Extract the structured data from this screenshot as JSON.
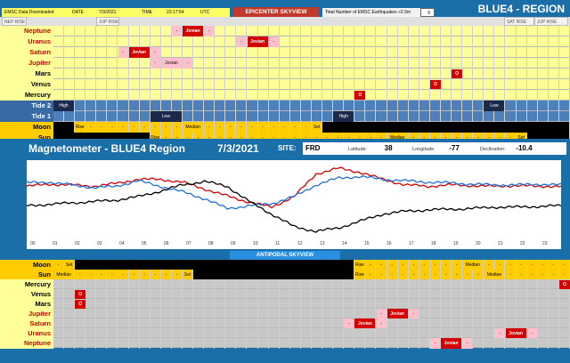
{
  "header": {
    "emsc_label": "EMSC Data Downloaded",
    "date_label": "DATE",
    "date_value": "7/3/2021",
    "time_label": "TIME",
    "time_value": "23:17:54",
    "tz": "UTC",
    "skyview_title": "EPICENTER SKYVIEW",
    "emsc_count_label": "Total Number of EMSC Earthquakes >2.5m",
    "emsc_count": "9",
    "region_title": "BLUE4 - REGION",
    "nep_rise": "NEP RISE",
    "jup_rise": "JUP RISE",
    "sat_rise": "SAT RISE",
    "jup_rise2": "JUP RISE"
  },
  "epicenter_rows": [
    {
      "label": "Neptune",
      "color": "red",
      "cells": [
        {
          "pos": 11,
          "w": 1,
          "t": "-",
          "k": "pink"
        },
        {
          "pos": 12,
          "w": 2,
          "t": "Jovian",
          "k": "red"
        },
        {
          "pos": 14,
          "w": 1,
          "t": "-",
          "k": "pink"
        }
      ]
    },
    {
      "label": "Uranus",
      "color": "red",
      "cells": [
        {
          "pos": 17,
          "w": 1,
          "t": "-",
          "k": "pink"
        },
        {
          "pos": 18,
          "w": 2,
          "t": "Jovian",
          "k": "red"
        },
        {
          "pos": 20,
          "w": 1,
          "t": "-",
          "k": "pink"
        }
      ]
    },
    {
      "label": "Saturn",
      "color": "red",
      "cells": [
        {
          "pos": 6,
          "w": 1,
          "t": "-",
          "k": "pink"
        },
        {
          "pos": 7,
          "w": 2,
          "t": "Jovian",
          "k": "red"
        },
        {
          "pos": 9,
          "w": 1,
          "t": "-",
          "k": "pink"
        }
      ]
    },
    {
      "label": "Jupiter",
      "color": "red",
      "cells": [
        {
          "pos": 9,
          "w": 1,
          "t": "-",
          "k": "pink"
        },
        {
          "pos": 10,
          "w": 2,
          "t": "Jovian",
          "k": "pink"
        },
        {
          "pos": 12,
          "w": 1,
          "t": "-",
          "k": "pink"
        }
      ]
    },
    {
      "label": "Mars",
      "color": "dark",
      "cells": [
        {
          "pos": 37,
          "w": 1,
          "t": "O",
          "k": "redbox"
        }
      ]
    },
    {
      "label": "Venus",
      "color": "dark",
      "cells": [
        {
          "pos": 35,
          "w": 1,
          "t": "O",
          "k": "redbox"
        }
      ]
    },
    {
      "label": "Mercury",
      "color": "dark",
      "cells": [
        {
          "pos": 28,
          "w": 1,
          "t": "O",
          "k": "redbox"
        }
      ]
    }
  ],
  "tide_rows": [
    {
      "label": "Tide 2",
      "cells": [
        {
          "pos": 0,
          "w": 2,
          "t": "High",
          "k": "navy"
        },
        {
          "pos": 40,
          "w": 2,
          "t": "Low",
          "k": "navy"
        }
      ]
    },
    {
      "label": "Tide 1",
      "cells": [
        {
          "pos": 9,
          "w": 3,
          "t": "Low",
          "k": "navy"
        },
        {
          "pos": 26,
          "w": 2,
          "t": "High",
          "k": "navy"
        }
      ]
    }
  ],
  "epi_moon": {
    "label": "Moon",
    "cells": [
      {
        "pos": 0,
        "w": 2,
        "t": "",
        "k": "black"
      },
      {
        "pos": 2,
        "w": 1,
        "t": "Rise",
        "k": "gold"
      },
      {
        "pos": 3,
        "w": 1,
        "t": "-",
        "k": "gold"
      },
      {
        "pos": 4,
        "w": 1,
        "t": "-",
        "k": "gold"
      },
      {
        "pos": 5,
        "w": 1,
        "t": "-",
        "k": "gold"
      },
      {
        "pos": 6,
        "w": 1,
        "t": "-",
        "k": "gold"
      },
      {
        "pos": 7,
        "w": 1,
        "t": "-",
        "k": "gold"
      },
      {
        "pos": 8,
        "w": 1,
        "t": "-",
        "k": "gold"
      },
      {
        "pos": 9,
        "w": 1,
        "t": "-",
        "k": "gold"
      },
      {
        "pos": 10,
        "w": 1,
        "t": "-",
        "k": "gold"
      },
      {
        "pos": 11,
        "w": 1,
        "t": "-",
        "k": "gold"
      },
      {
        "pos": 12,
        "w": 2,
        "t": "Median",
        "k": "gold"
      },
      {
        "pos": 14,
        "w": 1,
        "t": "-",
        "k": "gold"
      },
      {
        "pos": 15,
        "w": 1,
        "t": "-",
        "k": "gold"
      },
      {
        "pos": 16,
        "w": 1,
        "t": "-",
        "k": "gold"
      },
      {
        "pos": 17,
        "w": 1,
        "t": "-",
        "k": "gold"
      },
      {
        "pos": 18,
        "w": 1,
        "t": "-",
        "k": "gold"
      },
      {
        "pos": 19,
        "w": 1,
        "t": "-",
        "k": "gold"
      },
      {
        "pos": 20,
        "w": 1,
        "t": "-",
        "k": "gold"
      },
      {
        "pos": 21,
        "w": 1,
        "t": "-",
        "k": "gold"
      },
      {
        "pos": 22,
        "w": 1,
        "t": "-",
        "k": "gold"
      },
      {
        "pos": 23,
        "w": 1,
        "t": "-",
        "k": "gold"
      },
      {
        "pos": 24,
        "w": 1,
        "t": "Set",
        "k": "gold"
      },
      {
        "pos": 25,
        "w": 23,
        "t": "",
        "k": "black"
      }
    ]
  },
  "epi_sun": {
    "label": "Sun",
    "cells": [
      {
        "pos": 0,
        "w": 9,
        "t": "",
        "k": "black"
      },
      {
        "pos": 9,
        "w": 1,
        "t": "Rise",
        "k": "gold"
      },
      {
        "pos": 10,
        "w": 1,
        "t": "-",
        "k": "gold"
      },
      {
        "pos": 11,
        "w": 1,
        "t": "-",
        "k": "gold"
      },
      {
        "pos": 12,
        "w": 1,
        "t": "-",
        "k": "gold"
      },
      {
        "pos": 13,
        "w": 1,
        "t": "-",
        "k": "gold"
      },
      {
        "pos": 14,
        "w": 1,
        "t": "-",
        "k": "gold"
      },
      {
        "pos": 15,
        "w": 1,
        "t": "-",
        "k": "gold"
      },
      {
        "pos": 16,
        "w": 1,
        "t": "-",
        "k": "gold"
      },
      {
        "pos": 17,
        "w": 1,
        "t": "-",
        "k": "gold"
      },
      {
        "pos": 18,
        "w": 1,
        "t": "-",
        "k": "gold"
      },
      {
        "pos": 19,
        "w": 1,
        "t": "-",
        "k": "gold"
      },
      {
        "pos": 20,
        "w": 1,
        "t": "-",
        "k": "gold"
      },
      {
        "pos": 21,
        "w": 1,
        "t": "-",
        "k": "gold"
      },
      {
        "pos": 22,
        "w": 1,
        "t": "-",
        "k": "gold"
      },
      {
        "pos": 23,
        "w": 1,
        "t": "-",
        "k": "gold"
      },
      {
        "pos": 24,
        "w": 1,
        "t": "-",
        "k": "gold"
      },
      {
        "pos": 25,
        "w": 1,
        "t": "-",
        "k": "gold"
      },
      {
        "pos": 26,
        "w": 1,
        "t": "-",
        "k": "gold"
      },
      {
        "pos": 27,
        "w": 1,
        "t": "-",
        "k": "gold"
      },
      {
        "pos": 28,
        "w": 1,
        "t": "-",
        "k": "gold"
      },
      {
        "pos": 29,
        "w": 1,
        "t": "-",
        "k": "gold"
      },
      {
        "pos": 30,
        "w": 1,
        "t": "-",
        "k": "gold"
      },
      {
        "pos": 31,
        "w": 2,
        "t": "Median",
        "k": "gold"
      },
      {
        "pos": 33,
        "w": 1,
        "t": "-",
        "k": "gold"
      },
      {
        "pos": 34,
        "w": 1,
        "t": "-",
        "k": "gold"
      },
      {
        "pos": 35,
        "w": 1,
        "t": "-",
        "k": "gold"
      },
      {
        "pos": 36,
        "w": 1,
        "t": "-",
        "k": "gold"
      },
      {
        "pos": 37,
        "w": 1,
        "t": "-",
        "k": "gold"
      },
      {
        "pos": 38,
        "w": 1,
        "t": "-",
        "k": "gold"
      },
      {
        "pos": 39,
        "w": 1,
        "t": "-",
        "k": "gold"
      },
      {
        "pos": 40,
        "w": 1,
        "t": "-",
        "k": "gold"
      },
      {
        "pos": 41,
        "w": 1,
        "t": "-",
        "k": "gold"
      },
      {
        "pos": 42,
        "w": 1,
        "t": "-",
        "k": "gold"
      },
      {
        "pos": 43,
        "w": 1,
        "t": "Set",
        "k": "gold"
      },
      {
        "pos": 44,
        "w": 4,
        "t": "",
        "k": "black"
      }
    ]
  },
  "magnetometer": {
    "title": "Magnetometer - BLUE4 Region",
    "date": "7/3/2021",
    "site_label": "SITE:",
    "site_value": "FRD",
    "lat_label": "Latitude:",
    "lat_value": "38",
    "lon_label": "Longitude:",
    "lon_value": "-77",
    "dec_label": "Declination:",
    "dec_value": "-10.4"
  },
  "chart_data": {
    "type": "line",
    "x": [
      0,
      1,
      2,
      3,
      4,
      5,
      6,
      7,
      8,
      9,
      10,
      11,
      12,
      13,
      14,
      15,
      16,
      17,
      18,
      19,
      20,
      21,
      22,
      23,
      24
    ],
    "xticks": [
      "00",
      "01",
      "02",
      "03",
      "04",
      "05",
      "06",
      "07",
      "08",
      "09",
      "10",
      "11",
      "12",
      "13",
      "14",
      "15",
      "16",
      "17",
      "18",
      "19",
      "20",
      "21",
      "22",
      "23"
    ],
    "series": [
      {
        "color": "#d40000",
        "values": [
          0.7,
          0.73,
          0.72,
          0.7,
          0.74,
          0.8,
          0.8,
          0.76,
          0.66,
          0.56,
          0.47,
          0.4,
          0.55,
          0.88,
          0.96,
          0.9,
          0.8,
          0.72,
          0.7,
          0.72,
          0.71,
          0.7,
          0.71,
          0.7,
          0.7
        ]
      },
      {
        "color": "#1f6fd6",
        "values": [
          0.75,
          0.76,
          0.72,
          0.68,
          0.7,
          0.78,
          0.7,
          0.62,
          0.52,
          0.38,
          0.42,
          0.45,
          0.55,
          0.72,
          0.82,
          0.84,
          0.8,
          0.78,
          0.76,
          0.75,
          0.73,
          0.72,
          0.72,
          0.73,
          0.72
        ]
      },
      {
        "color": "#000000",
        "values": [
          0.42,
          0.44,
          0.46,
          0.48,
          0.5,
          0.55,
          0.63,
          0.72,
          0.77,
          0.7,
          0.48,
          0.3,
          0.12,
          0.05,
          0.1,
          0.2,
          0.3,
          0.34,
          0.36,
          0.37,
          0.38,
          0.4,
          0.4,
          0.41,
          0.42
        ]
      }
    ],
    "ylim": [
      0,
      1
    ]
  },
  "antipodal": {
    "title": "ANTIPODAL SKYVIEW",
    "moon": {
      "label": "Moon",
      "cells": [
        {
          "pos": 0,
          "w": 1,
          "t": "-",
          "k": "gold"
        },
        {
          "pos": 1,
          "w": 1,
          "t": "Set",
          "k": "gold"
        },
        {
          "pos": 2,
          "w": 26,
          "t": "",
          "k": "black"
        },
        {
          "pos": 28,
          "w": 1,
          "t": "Rise",
          "k": "gold"
        },
        {
          "pos": 29,
          "w": 1,
          "t": "-",
          "k": "gold"
        },
        {
          "pos": 30,
          "w": 1,
          "t": "-",
          "k": "gold"
        },
        {
          "pos": 31,
          "w": 1,
          "t": "-",
          "k": "gold"
        },
        {
          "pos": 32,
          "w": 1,
          "t": "-",
          "k": "gold"
        },
        {
          "pos": 33,
          "w": 1,
          "t": "-",
          "k": "gold"
        },
        {
          "pos": 34,
          "w": 1,
          "t": "-",
          "k": "gold"
        },
        {
          "pos": 35,
          "w": 1,
          "t": "-",
          "k": "gold"
        },
        {
          "pos": 36,
          "w": 1,
          "t": "-",
          "k": "gold"
        },
        {
          "pos": 37,
          "w": 1,
          "t": "-",
          "k": "gold"
        },
        {
          "pos": 38,
          "w": 2,
          "t": "Median",
          "k": "gold"
        },
        {
          "pos": 40,
          "w": 1,
          "t": "-",
          "k": "gold"
        },
        {
          "pos": 41,
          "w": 1,
          "t": "-",
          "k": "gold"
        },
        {
          "pos": 42,
          "w": 1,
          "t": "-",
          "k": "gold"
        },
        {
          "pos": 43,
          "w": 1,
          "t": "-",
          "k": "gold"
        },
        {
          "pos": 44,
          "w": 1,
          "t": "-",
          "k": "gold"
        },
        {
          "pos": 45,
          "w": 1,
          "t": "-",
          "k": "gold"
        },
        {
          "pos": 46,
          "w": 1,
          "t": "-",
          "k": "gold"
        },
        {
          "pos": 47,
          "w": 1,
          "t": "-",
          "k": "gold"
        }
      ]
    },
    "sun": {
      "label": "Sun",
      "cells": [
        {
          "pos": 0,
          "w": 2,
          "t": "Median",
          "k": "gold"
        },
        {
          "pos": 2,
          "w": 1,
          "t": "-",
          "k": "gold"
        },
        {
          "pos": 3,
          "w": 1,
          "t": "-",
          "k": "gold"
        },
        {
          "pos": 4,
          "w": 1,
          "t": "-",
          "k": "gold"
        },
        {
          "pos": 5,
          "w": 1,
          "t": "-",
          "k": "gold"
        },
        {
          "pos": 6,
          "w": 1,
          "t": "-",
          "k": "gold"
        },
        {
          "pos": 7,
          "w": 1,
          "t": "-",
          "k": "gold"
        },
        {
          "pos": 8,
          "w": 1,
          "t": "-",
          "k": "gold"
        },
        {
          "pos": 9,
          "w": 1,
          "t": "-",
          "k": "gold"
        },
        {
          "pos": 10,
          "w": 1,
          "t": "-",
          "k": "gold"
        },
        {
          "pos": 11,
          "w": 1,
          "t": "-",
          "k": "gold"
        },
        {
          "pos": 12,
          "w": 1,
          "t": "Set",
          "k": "gold"
        },
        {
          "pos": 13,
          "w": 15,
          "t": "",
          "k": "black"
        },
        {
          "pos": 28,
          "w": 1,
          "t": "Rise",
          "k": "gold"
        },
        {
          "pos": 29,
          "w": 1,
          "t": "-",
          "k": "gold"
        },
        {
          "pos": 30,
          "w": 1,
          "t": "-",
          "k": "gold"
        },
        {
          "pos": 31,
          "w": 1,
          "t": "-",
          "k": "gold"
        },
        {
          "pos": 32,
          "w": 1,
          "t": "-",
          "k": "gold"
        },
        {
          "pos": 33,
          "w": 1,
          "t": "-",
          "k": "gold"
        },
        {
          "pos": 34,
          "w": 1,
          "t": "-",
          "k": "gold"
        },
        {
          "pos": 35,
          "w": 1,
          "t": "-",
          "k": "gold"
        },
        {
          "pos": 36,
          "w": 1,
          "t": "-",
          "k": "gold"
        },
        {
          "pos": 37,
          "w": 1,
          "t": "-",
          "k": "gold"
        },
        {
          "pos": 38,
          "w": 1,
          "t": "-",
          "k": "gold"
        },
        {
          "pos": 39,
          "w": 1,
          "t": "-",
          "k": "gold"
        },
        {
          "pos": 40,
          "w": 2,
          "t": "Median",
          "k": "gold"
        },
        {
          "pos": 42,
          "w": 1,
          "t": "-",
          "k": "gold"
        },
        {
          "pos": 43,
          "w": 1,
          "t": "-",
          "k": "gold"
        },
        {
          "pos": 44,
          "w": 1,
          "t": "-",
          "k": "gold"
        },
        {
          "pos": 45,
          "w": 1,
          "t": "-",
          "k": "gold"
        },
        {
          "pos": 46,
          "w": 1,
          "t": "-",
          "k": "gold"
        },
        {
          "pos": 47,
          "w": 1,
          "t": "-",
          "k": "gold"
        }
      ]
    },
    "rows": [
      {
        "label": "Mercury",
        "color": "dark",
        "cells": [
          {
            "pos": 47,
            "w": 1,
            "t": "O",
            "k": "redbox"
          }
        ]
      },
      {
        "label": "Venus",
        "color": "dark",
        "cells": [
          {
            "pos": 2,
            "w": 1,
            "t": "O",
            "k": "redbox"
          }
        ]
      },
      {
        "label": "Mars",
        "color": "dark",
        "cells": [
          {
            "pos": 2,
            "w": 1,
            "t": "O",
            "k": "redbox"
          }
        ]
      },
      {
        "label": "Jupiter",
        "color": "red",
        "cells": [
          {
            "pos": 30,
            "w": 1,
            "t": "-",
            "k": "pink"
          },
          {
            "pos": 31,
            "w": 2,
            "t": "Jovian",
            "k": "red"
          },
          {
            "pos": 33,
            "w": 1,
            "t": "-",
            "k": "pink"
          }
        ]
      },
      {
        "label": "Saturn",
        "color": "red",
        "cells": [
          {
            "pos": 27,
            "w": 1,
            "t": "-",
            "k": "pink"
          },
          {
            "pos": 28,
            "w": 2,
            "t": "Jovian",
            "k": "red"
          },
          {
            "pos": 30,
            "w": 1,
            "t": "-",
            "k": "pink"
          }
        ]
      },
      {
        "label": "Uranus",
        "color": "red",
        "cells": [
          {
            "pos": 41,
            "w": 1,
            "t": "-",
            "k": "pink"
          },
          {
            "pos": 42,
            "w": 2,
            "t": "Jovian",
            "k": "red"
          },
          {
            "pos": 44,
            "w": 1,
            "t": "-",
            "k": "pink"
          }
        ]
      },
      {
        "label": "Neptune",
        "color": "red",
        "cells": [
          {
            "pos": 35,
            "w": 1,
            "t": "-",
            "k": "pink"
          },
          {
            "pos": 36,
            "w": 2,
            "t": "Jovian",
            "k": "red"
          },
          {
            "pos": 38,
            "w": 1,
            "t": "-",
            "k": "pink"
          }
        ]
      }
    ]
  }
}
